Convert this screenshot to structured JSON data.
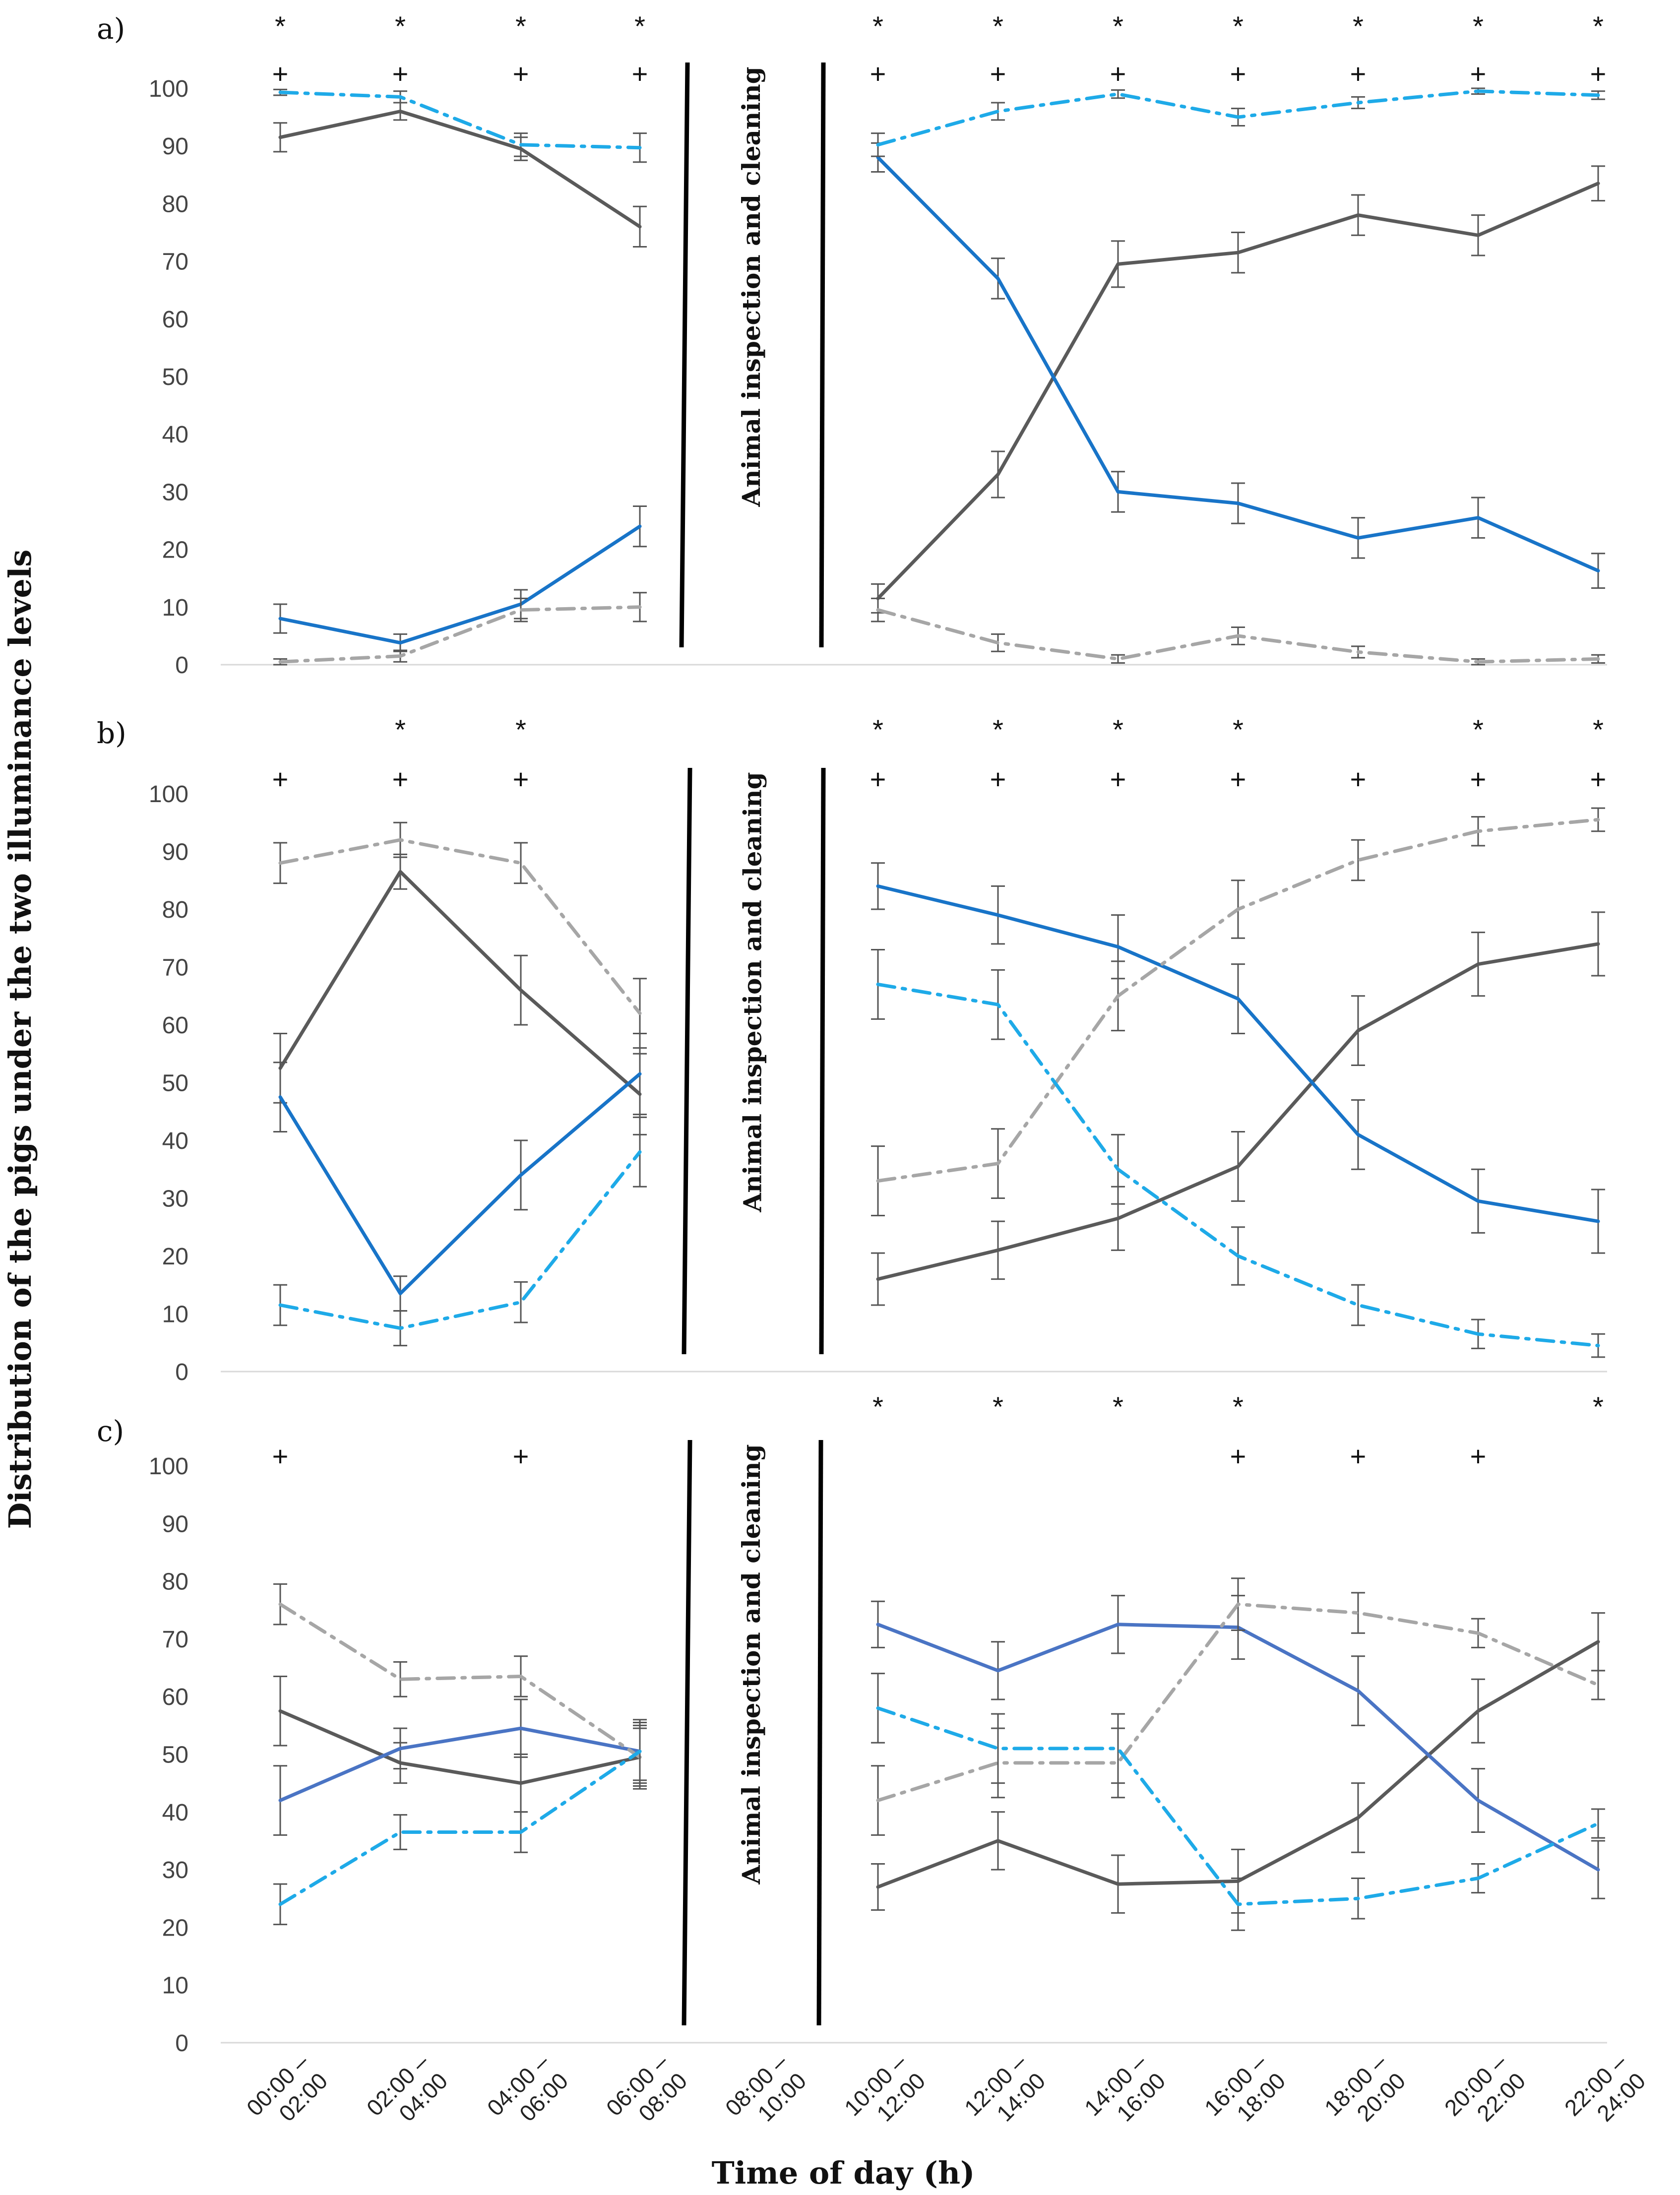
{
  "chart_data": {
    "type": "line",
    "ylabel": "Distribution of the pigs under the two illuminance levels",
    "xlabel": "Time of day (h)",
    "x_categories": [
      "00:00 – 02:00",
      "02:00 – 04:00",
      "04:00 – 06:00",
      "06:00 – 08:00",
      "08:00 – 10:00",
      "10:00 – 12:00",
      "12:00 – 14:00",
      "14:00 – 16:00",
      "16:00 – 18:00",
      "18:00 – 20:00",
      "20:00 – 22:00",
      "22:00 – 24:00"
    ],
    "annotation": "Animal inspection and cleaning",
    "yticks": [
      0,
      10,
      20,
      30,
      40,
      50,
      60,
      70,
      80,
      90,
      100
    ],
    "ylim": [
      0,
      100
    ],
    "grid": false,
    "panels": [
      {
        "label": "a)",
        "asterisk": [
          0,
          1,
          2,
          3,
          5,
          6,
          7,
          8,
          9,
          10,
          11
        ],
        "plus": [
          0,
          1,
          2,
          3,
          5,
          6,
          7,
          8,
          9,
          10,
          11
        ],
        "series": [
          {
            "style": "solid",
            "color": "#5a5a5a",
            "values": [
              91.5,
              96,
              89.5,
              76,
              null,
              11.5,
              33,
              69.5,
              71.5,
              78,
              74.5,
              83.5
            ],
            "errors": [
              2.5,
              1.5,
              2,
              3.5,
              null,
              2.5,
              4,
              4,
              3.5,
              3.5,
              3.5,
              3
            ]
          },
          {
            "style": "solid",
            "color": "#1874c8",
            "values": [
              8,
              3.8,
              10.5,
              24,
              null,
              88,
              67,
              30,
              28,
              22,
              25.5,
              16.3
            ],
            "errors": [
              2.5,
              1.5,
              2.5,
              3.5,
              null,
              2.5,
              3.5,
              3.5,
              3.5,
              3.5,
              3.5,
              3
            ]
          },
          {
            "style": "dashdot",
            "color": "#1eaae8",
            "values": [
              99.3,
              98.5,
              90.2,
              89.7,
              null,
              90.2,
              96,
              99,
              95,
              97.5,
              99.5,
              98.8
            ],
            "errors": [
              0.5,
              1,
              2,
              2.5,
              null,
              2,
              1.5,
              0.7,
              1.5,
              1,
              0.5,
              0.7
            ]
          },
          {
            "style": "dashdot",
            "color": "#a6a6a6",
            "values": [
              0.5,
              1.5,
              9.5,
              10,
              null,
              9.5,
              3.8,
              1,
              5,
              2.2,
              0.5,
              1
            ],
            "errors": [
              0.5,
              1,
              2,
              2.5,
              null,
              2,
              1.5,
              0.7,
              1.5,
              1,
              0.5,
              0.7
            ]
          }
        ]
      },
      {
        "label": "b)",
        "asterisk": [
          1,
          2,
          5,
          6,
          7,
          8,
          10,
          11
        ],
        "plus": [
          0,
          1,
          2,
          5,
          6,
          7,
          8,
          9,
          10,
          11
        ],
        "series": [
          {
            "style": "solid",
            "color": "#5a5a5a",
            "values": [
              52.5,
              86.5,
              66,
              48,
              null,
              16,
              21,
              26.5,
              35.5,
              59,
              70.5,
              74
            ],
            "errors": [
              6,
              3,
              6,
              7,
              null,
              4.5,
              5,
              5.5,
              6,
              6,
              5.5,
              5.5
            ]
          },
          {
            "style": "solid",
            "color": "#1874c8",
            "values": [
              47.5,
              13.5,
              34,
              51.5,
              null,
              84,
              79,
              73.5,
              64.5,
              41,
              29.5,
              26
            ],
            "errors": [
              6,
              3,
              6,
              7,
              null,
              4,
              5,
              5.5,
              6,
              6,
              5.5,
              5.5
            ]
          },
          {
            "style": "dashdot",
            "color": "#a6a6a6",
            "values": [
              88,
              92,
              88,
              62,
              null,
              33,
              36,
              65,
              80,
              88.5,
              93.5,
              95.5
            ],
            "errors": [
              3.5,
              3,
              3.5,
              6,
              null,
              6,
              6,
              6,
              5,
              3.5,
              2.5,
              2
            ]
          },
          {
            "style": "dashdot",
            "color": "#1eaae8",
            "values": [
              11.5,
              7.5,
              12,
              38,
              null,
              67,
              63.5,
              35,
              20,
              11.5,
              6.5,
              4.5
            ],
            "errors": [
              3.5,
              3,
              3.5,
              6,
              null,
              6,
              6,
              6,
              5,
              3.5,
              2.5,
              2
            ]
          }
        ]
      },
      {
        "label": "c)",
        "asterisk": [
          5,
          6,
          7,
          8,
          11
        ],
        "plus": [
          0,
          2,
          8,
          9,
          10
        ],
        "series": [
          {
            "style": "solid",
            "color": "#5a5a5a",
            "values": [
              57.5,
              48.5,
              45,
              49.5,
              null,
              27,
              35,
              27.5,
              28,
              39,
              57.5,
              69.5
            ],
            "errors": [
              6,
              3.5,
              5,
              5,
              null,
              4,
              5,
              5,
              5.5,
              6,
              5.5,
              5
            ]
          },
          {
            "style": "solid",
            "color": "#4a74c4",
            "values": [
              42,
              51,
              54.5,
              50.5,
              null,
              72.5,
              64.5,
              72.5,
              72,
              61,
              42,
              30
            ],
            "errors": [
              6,
              3.5,
              5,
              5,
              null,
              4,
              5,
              5,
              5.5,
              6,
              5.5,
              5
            ]
          },
          {
            "style": "dashdot",
            "color": "#a6a6a6",
            "values": [
              76,
              63,
              63.5,
              49.5,
              null,
              42,
              48.5,
              48.5,
              76,
              74.5,
              71,
              62
            ],
            "errors": [
              3.5,
              3,
              3.5,
              5.5,
              null,
              6,
              6,
              6,
              4.5,
              3.5,
              2.5,
              2.5
            ]
          },
          {
            "style": "dashdot",
            "color": "#1eaae8",
            "values": [
              24,
              36.5,
              36.5,
              50.5,
              null,
              58,
              51,
              51,
              24,
              25,
              28.5,
              38
            ],
            "errors": [
              3.5,
              3,
              3.5,
              5.5,
              null,
              6,
              6,
              6,
              4.5,
              3.5,
              2.5,
              2.5
            ]
          }
        ]
      }
    ]
  }
}
